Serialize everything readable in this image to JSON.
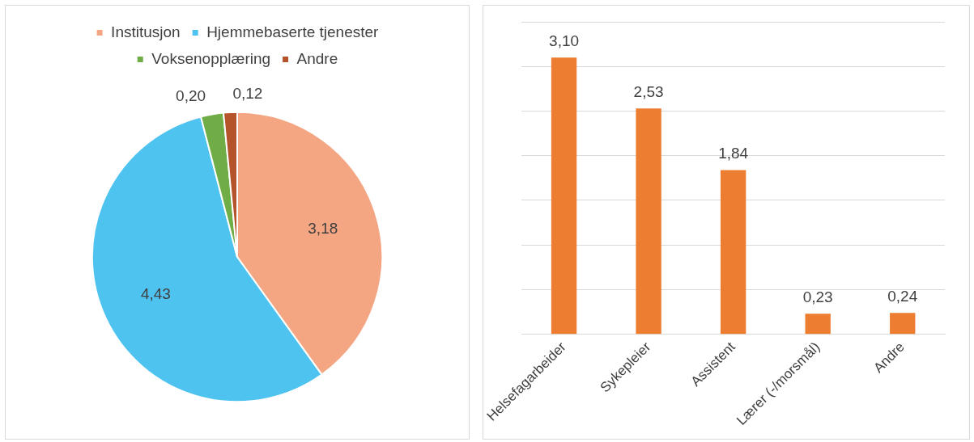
{
  "chart_data": [
    {
      "type": "pie",
      "categories": [
        "Institusjon",
        "Hjemmebaserte tjenester",
        "Voksenopplæring",
        "Andre"
      ],
      "values": [
        3.18,
        4.43,
        0.2,
        0.12
      ],
      "colors": [
        "#f4a582",
        "#4fc3f0",
        "#70ad47",
        "#b5532a"
      ],
      "value_labels": [
        "3,18",
        "4,43",
        "0,20",
        "0,12"
      ],
      "legend": "top"
    },
    {
      "type": "bar",
      "categories": [
        "Helsefagarbeider",
        "Sykepleier",
        "Assistent",
        "Lærer (-/morsmål)",
        "Andre"
      ],
      "values": [
        3.1,
        2.53,
        1.84,
        0.23,
        0.24
      ],
      "color": "#ed7d31",
      "value_labels": [
        "3,10",
        "2,53",
        "1,84",
        "0,23",
        "0,24"
      ],
      "ylim": [
        0,
        3.5
      ],
      "yticks": [
        {
          "value": 0,
          "label": null
        },
        {
          "value": 0.5,
          "label": null
        },
        {
          "value": 1,
          "label": null
        },
        {
          "value": 1.5,
          "label": null
        },
        {
          "value": 2,
          "label": null
        },
        {
          "value": 2.5,
          "label": null
        },
        {
          "value": 3,
          "label": null
        },
        {
          "value": 3.5,
          "label": null
        }
      ],
      "grid": "y",
      "tick_labels": "x"
    }
  ]
}
